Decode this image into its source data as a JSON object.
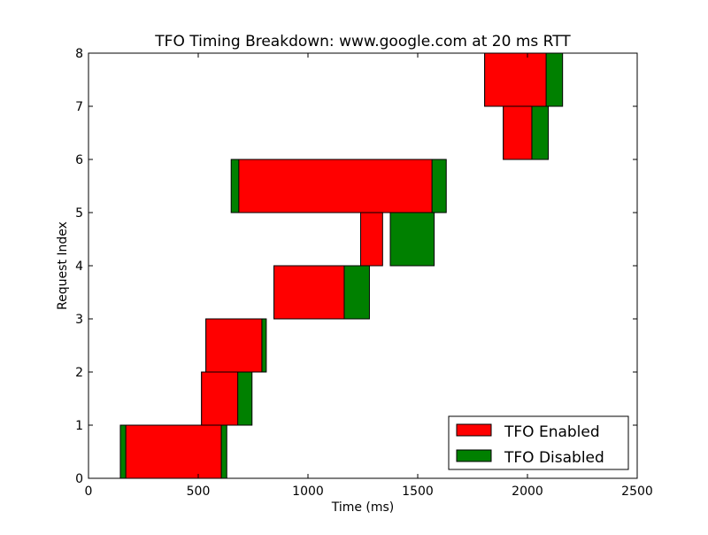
{
  "chart_data": {
    "type": "bar",
    "orientation": "horizontal-range",
    "title": "TFO Timing Breakdown: www.google.com at 20 ms RTT",
    "xlabel": "Time (ms)",
    "ylabel": "Request Index",
    "xlim": [
      0,
      2500
    ],
    "ylim": [
      0,
      8
    ],
    "xticks": [
      0,
      500,
      1000,
      1500,
      2000,
      2500
    ],
    "yticks": [
      0,
      1,
      2,
      3,
      4,
      5,
      6,
      7,
      8
    ],
    "grid": false,
    "legend_position": "bottom-right",
    "series": [
      {
        "name": "TFO Disabled",
        "color": "#008000",
        "bars": [
          {
            "index": 0,
            "start": 145,
            "end": 630
          },
          {
            "index": 1,
            "start": 515,
            "end": 745
          },
          {
            "index": 2,
            "start": 535,
            "end": 810
          },
          {
            "index": 3,
            "start": 845,
            "end": 1280
          },
          {
            "index": 4,
            "start": 1375,
            "end": 1575
          },
          {
            "index": 5,
            "start": 650,
            "end": 1630
          },
          {
            "index": 6,
            "start": 1890,
            "end": 2095
          },
          {
            "index": 7,
            "start": 1805,
            "end": 2160
          }
        ]
      },
      {
        "name": "TFO Enabled",
        "color": "#ff0000",
        "bars": [
          {
            "index": 0,
            "start": 170,
            "end": 605
          },
          {
            "index": 1,
            "start": 515,
            "end": 680
          },
          {
            "index": 2,
            "start": 535,
            "end": 790
          },
          {
            "index": 3,
            "start": 845,
            "end": 1165
          },
          {
            "index": 4,
            "start": 1240,
            "end": 1340
          },
          {
            "index": 5,
            "start": 685,
            "end": 1565
          },
          {
            "index": 6,
            "start": 1890,
            "end": 2020
          },
          {
            "index": 7,
            "start": 1805,
            "end": 2085
          }
        ]
      }
    ],
    "legend": [
      {
        "label": "TFO Enabled",
        "color": "#ff0000"
      },
      {
        "label": "TFO Disabled",
        "color": "#008000"
      }
    ]
  }
}
